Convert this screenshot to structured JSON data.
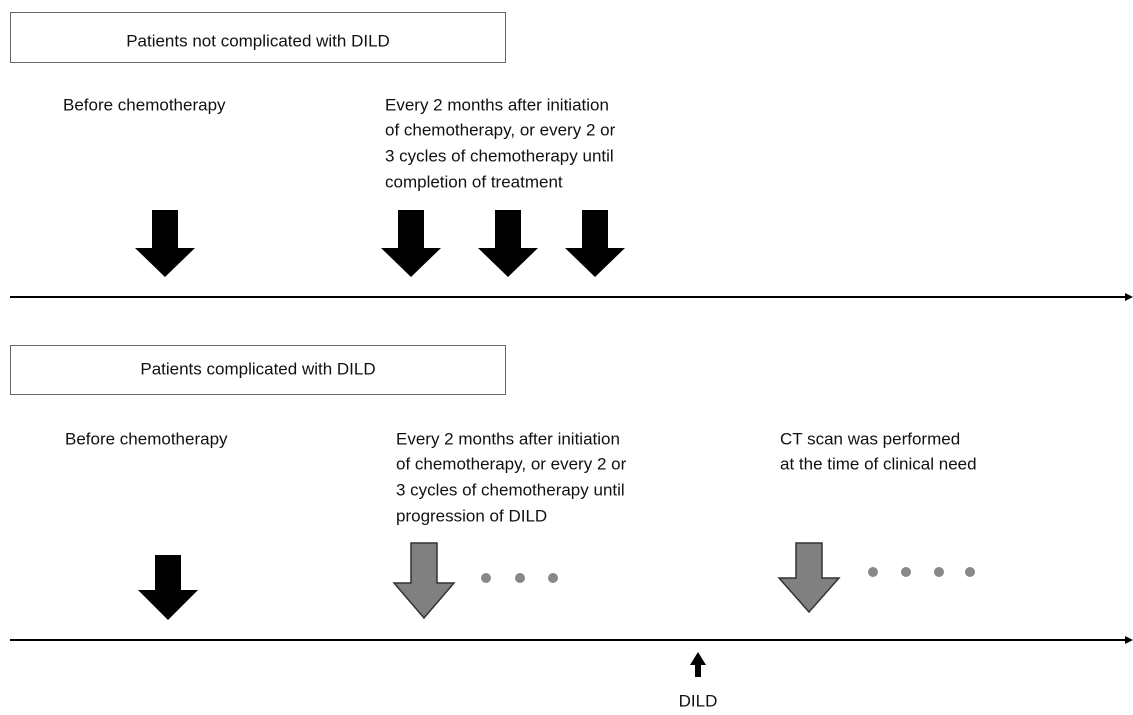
{
  "panels": [
    {
      "title": "Patients not complicated with DILD",
      "columns": [
        {
          "lines": [
            "Before chemotherapy"
          ]
        },
        {
          "lines": [
            "Every 2 months after initiation",
            "of chemotherapy, or every 2 or",
            "3 cycles of chemotherapy until",
            "completion of treatment"
          ]
        }
      ]
    },
    {
      "title": "Patients complicated with DILD",
      "columns": [
        {
          "lines": [
            "Before chemotherapy"
          ]
        },
        {
          "lines": [
            "Every 2 months after initiation",
            "of chemotherapy, or every 2 or",
            "3 cycles of chemotherapy until",
            "progression of DILD"
          ]
        },
        {
          "lines": [
            "CT scan was performed",
            "at the time of clinical need"
          ]
        }
      ]
    }
  ],
  "event_label": "DILD"
}
